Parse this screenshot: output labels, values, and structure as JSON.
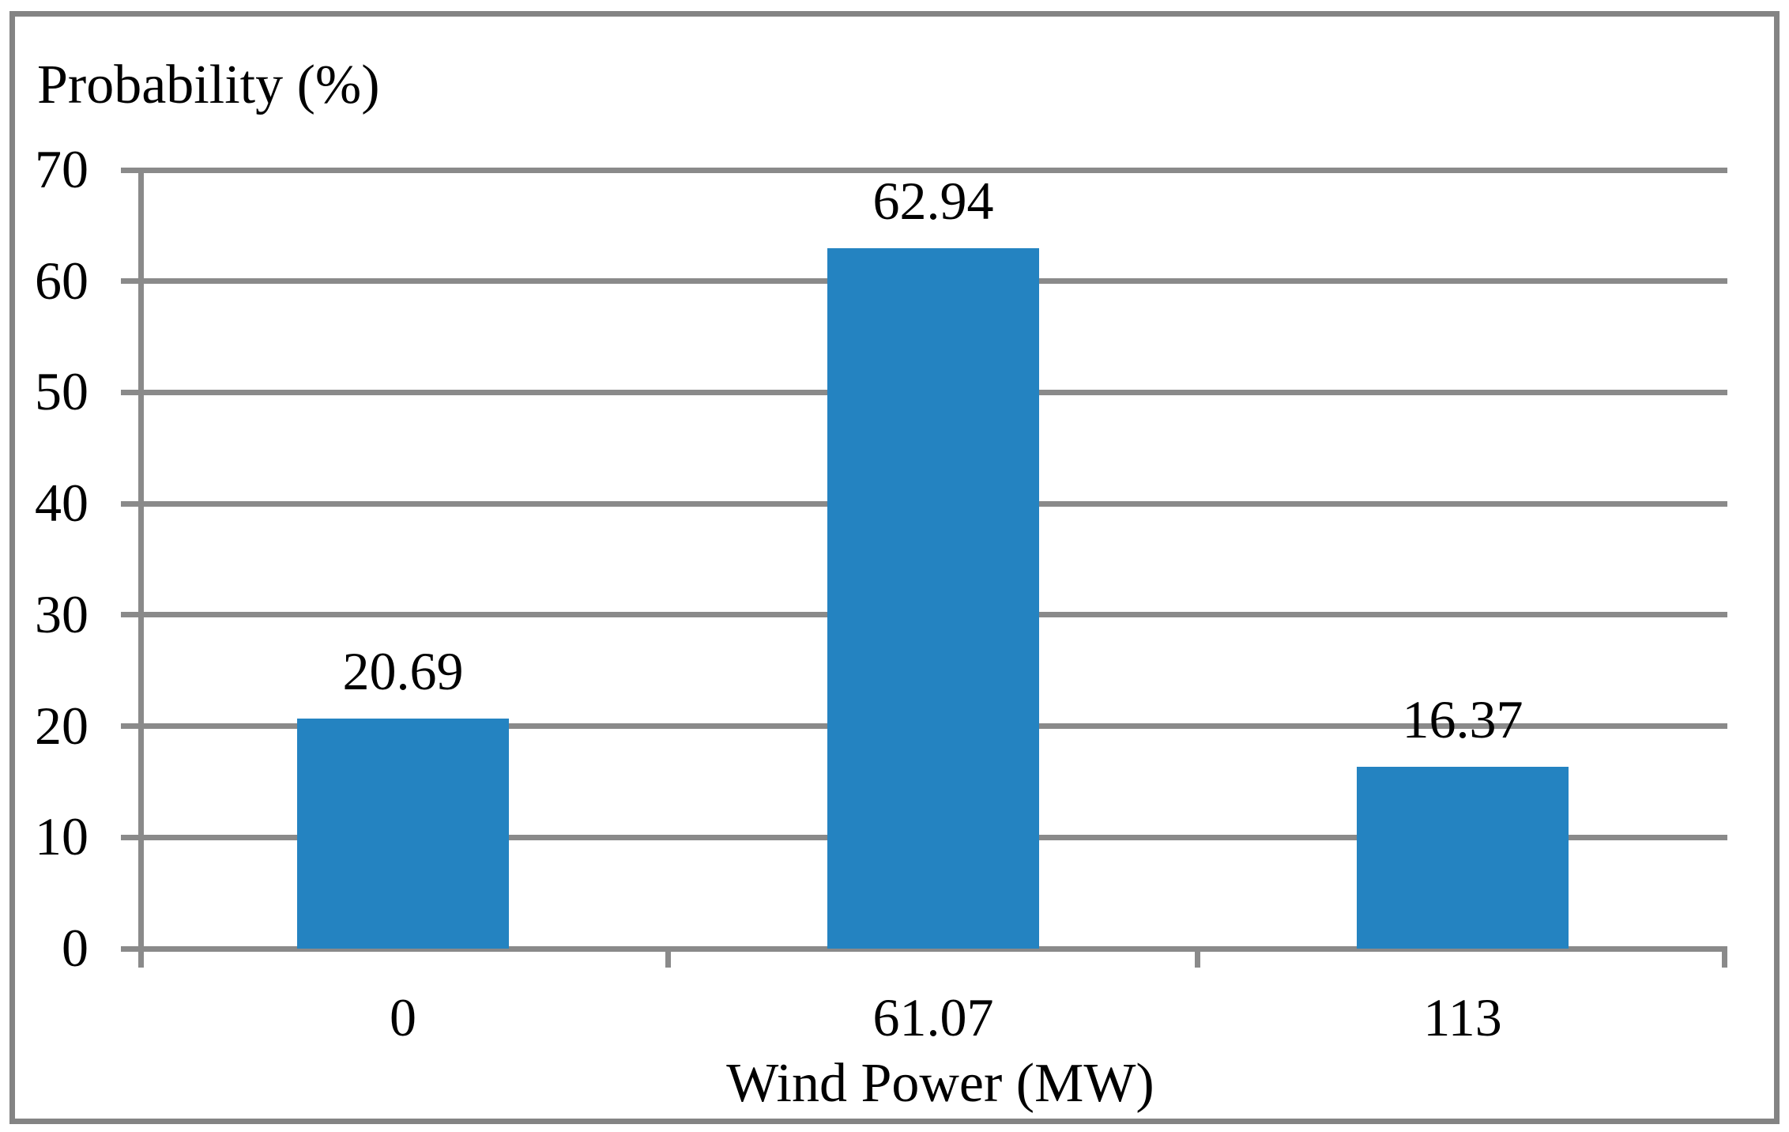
{
  "chart_data": {
    "type": "bar",
    "title": "Probability (%)",
    "xlabel": "Wind Power (MW)",
    "ylabel": "",
    "categories": [
      "0",
      "61.07",
      "113"
    ],
    "values": [
      20.69,
      62.94,
      16.37
    ],
    "value_labels": [
      "20.69",
      "62.94",
      "16.37"
    ],
    "yticks": [
      0,
      10,
      20,
      30,
      40,
      50,
      60,
      70
    ],
    "ylim": [
      0,
      70
    ],
    "grid": "horizontal-major",
    "legend": "none",
    "colors": {
      "bar": "#2483C1",
      "gridline": "#8A8A8A",
      "axis": "#8A8A8A",
      "border": "#848484",
      "text": "#000000",
      "background": "#FFFFFF"
    }
  }
}
